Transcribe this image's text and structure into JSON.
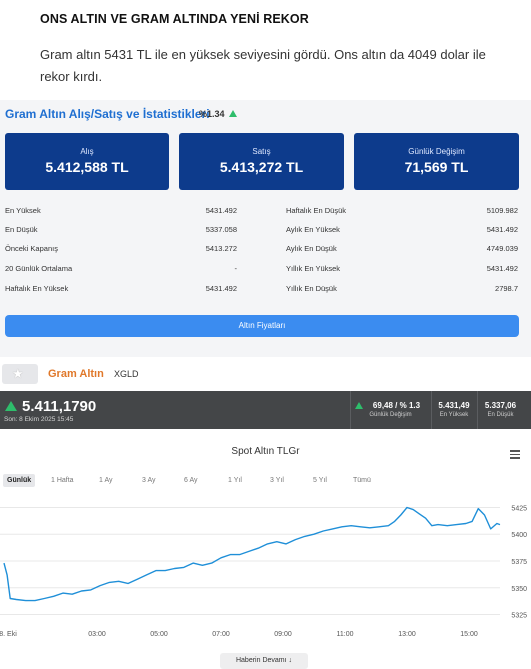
{
  "article": {
    "headline": "ONS ALTIN VE GRAM ALTINDA YENİ REKOR",
    "lead": "Gram altın 5431 TL ile en yüksek seviyesini gördü. Ons altın da 4049 dolar ile rekor kırdı."
  },
  "gold_widget": {
    "title": "Gram Altın Alış/Satış ve İstatistikleri",
    "change_pct": "%1.34",
    "change_direction": "up-arrow-icon",
    "cards": [
      {
        "label": "Alış",
        "value": "5.412,588 TL"
      },
      {
        "label": "Satış",
        "value": "5.413,272 TL"
      },
      {
        "label": "Günlük Değişim",
        "value": "71,569 TL"
      }
    ],
    "stats_left": [
      {
        "label": "En Yüksek",
        "value": "5431.492"
      },
      {
        "label": "En Düşük",
        "value": "5337.058"
      },
      {
        "label": "Önceki Kapanış",
        "value": "5413.272"
      },
      {
        "label": "20 Günlük Ortalama",
        "value": "-"
      },
      {
        "label": "Haftalık En Yüksek",
        "value": "5431.492"
      }
    ],
    "stats_right": [
      {
        "label": "Haftalık En Düşük",
        "value": "5109.982"
      },
      {
        "label": "Aylık En Yüksek",
        "value": "5431.492"
      },
      {
        "label": "Aylık En Düşük",
        "value": "4749.039"
      },
      {
        "label": "Yıllık En Yüksek",
        "value": "5431.492"
      },
      {
        "label": "Yıllık En Düşük",
        "value": "2798.7"
      }
    ],
    "prices_button": "Altın Fiyatları",
    "colors": {
      "card_bg": "#0d3b8c",
      "title": "#1f6fd1",
      "button": "#3b8cf0",
      "up": "#2ebd6b"
    }
  },
  "instrument": {
    "name": "Gram Altın",
    "code": "XGLD",
    "star_icon": "star-icon",
    "price": "5.411,1790",
    "date": "Son: 8 Ekim 2025 15:45",
    "daily_change": "69,48 / % 1.3",
    "daily_change_label": "Günlük Değişim",
    "high": "5.431,49",
    "high_label": "En Yüksek",
    "low": "5.337,06",
    "low_label": "En Düşük",
    "colors": {
      "name": "#e0782a",
      "bar_bg": "#444648"
    }
  },
  "chart": {
    "title": "Spot Altın TLGr",
    "menu_icon": "hamburger-menu-icon",
    "ranges": [
      "Günlük",
      "1 Hafta",
      "1 Ay",
      "3 Ay",
      "6 Ay",
      "1 Yıl",
      "3 Yıl",
      "5 Yıl",
      "Tümü"
    ],
    "active_range": "Günlük"
  },
  "chart_data": {
    "type": "line",
    "title": "Spot Altın TLGr",
    "xlabel": "",
    "ylabel": "",
    "x_ticks": [
      "8. Eki",
      "03:00",
      "05:00",
      "07:00",
      "09:00",
      "11:00",
      "13:00",
      "15:00"
    ],
    "y_ticks": [
      5325,
      5350,
      5375,
      5400,
      5425
    ],
    "ylim": [
      5318,
      5432
    ],
    "xlim": [
      0,
      16
    ],
    "grid": true,
    "color": "#1f8fd8",
    "series": [
      {
        "x": [
          0,
          0.1,
          0.2,
          0.4,
          0.7,
          1.0,
          1.3,
          1.6,
          1.9,
          2.2,
          2.5,
          2.8,
          3.1,
          3.4,
          3.7,
          4.0,
          4.3,
          4.6,
          4.9,
          5.2,
          5.5,
          5.8,
          6.1,
          6.4,
          6.7,
          7.0,
          7.3,
          7.6,
          7.9,
          8.2,
          8.5,
          8.8,
          9.1,
          9.4,
          9.7,
          10.0,
          10.3,
          10.6,
          10.9,
          11.2,
          11.5,
          11.8,
          12.1,
          12.4,
          12.6,
          12.8,
          13.0,
          13.2,
          13.4,
          13.6,
          13.8,
          14.0,
          14.3,
          14.6,
          14.9,
          15.1,
          15.3,
          15.5,
          15.7,
          15.9,
          16.0
        ],
        "values": [
          5373,
          5362,
          5340,
          5339,
          5338,
          5338,
          5340,
          5342,
          5345,
          5344,
          5347,
          5348,
          5352,
          5355,
          5356,
          5354,
          5358,
          5362,
          5366,
          5366,
          5368,
          5369,
          5373,
          5371,
          5373,
          5378,
          5381,
          5381,
          5384,
          5387,
          5391,
          5393,
          5391,
          5395,
          5398,
          5400,
          5403,
          5405,
          5407,
          5408,
          5407,
          5406,
          5407,
          5408,
          5412,
          5418,
          5425,
          5423,
          5419,
          5415,
          5408,
          5409,
          5408,
          5409,
          5410,
          5412,
          5424,
          5418,
          5405,
          5410,
          5409
        ]
      }
    ]
  },
  "footer": {
    "more_button": "Haberin Devamı",
    "more_icon": "arrow-down-icon"
  }
}
